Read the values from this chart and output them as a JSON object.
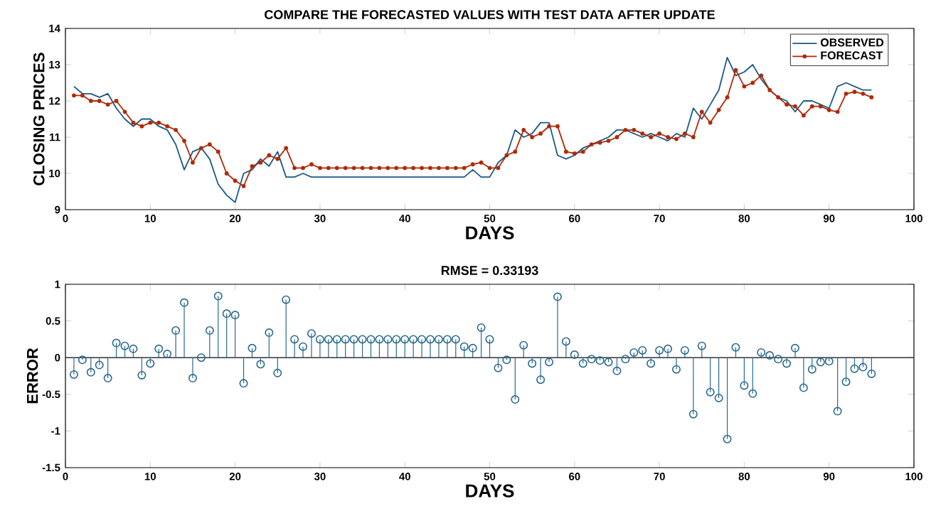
{
  "chart_data": [
    {
      "type": "line",
      "title": "COMPARE THE FORECASTED VALUES WITH TEST DATA AFTER UPDATE",
      "xlabel": "DAYS",
      "ylabel": "CLOSING PRICES",
      "x": [
        1,
        2,
        3,
        4,
        5,
        6,
        7,
        8,
        9,
        10,
        11,
        12,
        13,
        14,
        15,
        16,
        17,
        18,
        19,
        20,
        21,
        22,
        23,
        24,
        25,
        26,
        27,
        28,
        29,
        30,
        31,
        32,
        33,
        34,
        35,
        36,
        37,
        38,
        39,
        40,
        41,
        42,
        43,
        44,
        45,
        46,
        47,
        48,
        49,
        50,
        51,
        52,
        53,
        54,
        55,
        56,
        57,
        58,
        59,
        60,
        61,
        62,
        63,
        64,
        65,
        66,
        67,
        68,
        69,
        70,
        71,
        72,
        73,
        74,
        75,
        76,
        77,
        78,
        79,
        80,
        81,
        82,
        83,
        84,
        85,
        86,
        87,
        88,
        89,
        90,
        91,
        92,
        93,
        94,
        95
      ],
      "xlim": [
        0,
        100
      ],
      "xticks": [
        0,
        10,
        20,
        30,
        40,
        50,
        60,
        70,
        80,
        90,
        100
      ],
      "ylim": [
        9,
        14
      ],
      "yticks": [
        9,
        10,
        11,
        12,
        13,
        14
      ],
      "legend": "top right",
      "line_style": "solid",
      "series": [
        {
          "name": "OBSERVED",
          "color": "#1a5a85",
          "values": [
            12.4,
            12.2,
            12.2,
            12.1,
            12.2,
            11.8,
            11.5,
            11.3,
            11.5,
            11.5,
            11.3,
            11.2,
            10.8,
            10.1,
            10.6,
            10.7,
            10.4,
            9.7,
            9.4,
            9.2,
            10.0,
            10.1,
            10.4,
            10.2,
            10.6,
            9.9,
            9.9,
            10.0,
            9.9,
            9.9,
            9.9,
            9.9,
            9.9,
            9.9,
            9.9,
            9.9,
            9.9,
            9.9,
            9.9,
            9.9,
            9.9,
            9.9,
            9.9,
            9.9,
            9.9,
            9.9,
            9.9,
            10.1,
            9.9,
            9.9,
            10.3,
            10.5,
            11.2,
            11.0,
            11.1,
            11.4,
            11.4,
            10.5,
            10.4,
            10.5,
            10.7,
            10.8,
            10.9,
            11.0,
            11.2,
            11.2,
            11.1,
            11.0,
            11.1,
            11.0,
            10.9,
            11.1,
            11.0,
            11.8,
            11.5,
            11.9,
            12.3,
            13.2,
            12.7,
            12.8,
            13.0,
            12.6,
            12.3,
            12.1,
            12.0,
            11.7,
            12.0,
            12.0,
            11.9,
            11.8,
            12.4,
            12.5,
            12.4,
            12.3,
            12.3
          ]
        },
        {
          "name": "FORECAST",
          "color": "#b02a08",
          "marker": "circle",
          "values": [
            12.15,
            12.15,
            12.0,
            12.0,
            11.9,
            12.0,
            11.7,
            11.4,
            11.3,
            11.4,
            11.4,
            11.3,
            11.2,
            10.9,
            10.3,
            10.7,
            10.8,
            10.6,
            10.0,
            9.8,
            9.65,
            10.2,
            10.3,
            10.5,
            10.4,
            10.7,
            10.15,
            10.15,
            10.25,
            10.15,
            10.15,
            10.15,
            10.15,
            10.15,
            10.15,
            10.15,
            10.15,
            10.15,
            10.15,
            10.15,
            10.15,
            10.15,
            10.15,
            10.15,
            10.15,
            10.15,
            10.15,
            10.25,
            10.3,
            10.15,
            10.15,
            10.5,
            10.6,
            11.2,
            11.0,
            11.1,
            11.3,
            11.3,
            10.6,
            10.55,
            10.6,
            10.8,
            10.85,
            10.9,
            11.0,
            11.2,
            11.2,
            11.1,
            11.0,
            11.1,
            11.0,
            10.95,
            11.1,
            11.0,
            11.7,
            11.4,
            11.75,
            12.1,
            12.85,
            12.4,
            12.5,
            12.7,
            12.3,
            12.1,
            11.9,
            11.85,
            11.6,
            11.85,
            11.85,
            11.75,
            11.7,
            12.2,
            12.25,
            12.2,
            12.1
          ]
        }
      ]
    },
    {
      "type": "lollipop",
      "title": "RMSE = 0.33193",
      "xlabel": "DAYS",
      "ylabel": "ERROR",
      "color": "#2a6a90",
      "marker": "circle",
      "x": [
        1,
        2,
        3,
        4,
        5,
        6,
        7,
        8,
        9,
        10,
        11,
        12,
        13,
        14,
        15,
        16,
        17,
        18,
        19,
        20,
        21,
        22,
        23,
        24,
        25,
        26,
        27,
        28,
        29,
        30,
        31,
        32,
        33,
        34,
        35,
        36,
        37,
        38,
        39,
        40,
        41,
        42,
        43,
        44,
        45,
        46,
        47,
        48,
        49,
        50,
        51,
        52,
        53,
        54,
        55,
        56,
        57,
        58,
        59,
        60,
        61,
        62,
        63,
        64,
        65,
        66,
        67,
        68,
        69,
        70,
        71,
        72,
        73,
        74,
        75,
        76,
        77,
        78,
        79,
        80,
        81,
        82,
        83,
        84,
        85,
        86,
        87,
        88,
        89,
        90,
        91,
        92,
        93,
        94,
        95
      ],
      "values": [
        -0.23,
        -0.03,
        -0.2,
        -0.1,
        -0.28,
        0.2,
        0.16,
        0.12,
        -0.24,
        -0.08,
        0.12,
        0.05,
        0.37,
        0.75,
        -0.28,
        0,
        0.37,
        0.84,
        0.6,
        0.58,
        -0.35,
        0.13,
        -0.09,
        0.34,
        -0.21,
        0.79,
        0.25,
        0.15,
        0.33,
        0.25,
        0.25,
        0.25,
        0.25,
        0.25,
        0.25,
        0.25,
        0.25,
        0.25,
        0.25,
        0.25,
        0.25,
        0.25,
        0.25,
        0.25,
        0.25,
        0.25,
        0.15,
        0.13,
        0.41,
        0.25,
        -0.14,
        -0.03,
        -0.57,
        0.17,
        -0.08,
        -0.3,
        -0.06,
        0.83,
        0.22,
        0.04,
        -0.08,
        -0.02,
        -0.04,
        -0.06,
        -0.18,
        -0.02,
        0.07,
        0.1,
        -0.08,
        0.1,
        0.12,
        -0.16,
        0.1,
        -0.77,
        0.16,
        -0.47,
        -0.55,
        -1.11,
        0.14,
        -0.38,
        -0.49,
        0.07,
        0.03,
        -0.02,
        -0.08,
        0.13,
        -0.41,
        -0.16,
        -0.06,
        -0.05,
        -0.73,
        -0.33,
        -0.15,
        -0.13,
        -0.22
      ],
      "xlim": [
        0,
        100
      ],
      "xticks": [
        0,
        10,
        20,
        30,
        40,
        50,
        60,
        70,
        80,
        90,
        100
      ],
      "ylim": [
        -1.5,
        1
      ],
      "yticks": [
        -1.5,
        -1,
        -0.5,
        0,
        0.5,
        1
      ],
      "ref_lines": [
        {
          "axis": "y",
          "value": 0,
          "color": "#333333"
        }
      ]
    }
  ]
}
